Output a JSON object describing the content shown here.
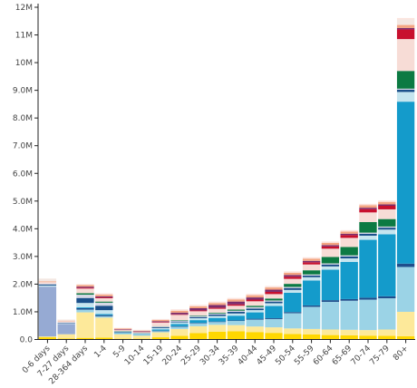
{
  "chart_data": {
    "type": "bar",
    "stacked": true,
    "ylim": [
      0,
      12000000
    ],
    "yticks": [
      {
        "value": 0,
        "label": "0.0"
      },
      {
        "value": 1000000,
        "label": "1.0M"
      },
      {
        "value": 2000000,
        "label": "2.0M"
      },
      {
        "value": 3000000,
        "label": "3.0M"
      },
      {
        "value": 4000000,
        "label": "4.0M"
      },
      {
        "value": 5000000,
        "label": "5.0M"
      },
      {
        "value": 6000000,
        "label": "6.0M"
      },
      {
        "value": 7000000,
        "label": "7.0M"
      },
      {
        "value": 8000000,
        "label": "8.0M"
      },
      {
        "value": 9000000,
        "label": "9.0M"
      },
      {
        "value": 10000000,
        "label": "10M"
      },
      {
        "value": 11000000,
        "label": "11M"
      },
      {
        "value": 12000000,
        "label": "12M"
      }
    ],
    "categories": [
      "0-6 days",
      "7-27 days",
      "28-364 days",
      "1-4",
      "5-9",
      "10-14",
      "15-19",
      "20-24",
      "25-29",
      "30-34",
      "35-39",
      "40-44",
      "45-49",
      "50-54",
      "55-59",
      "60-64",
      "65-69",
      "70-74",
      "75-79",
      "80+"
    ],
    "grid": false,
    "series": [
      {
        "color": "#ffd700",
        "values": [
          80000,
          40000,
          60000,
          70000,
          30000,
          30000,
          80000,
          130000,
          230000,
          280000,
          300000,
          270000,
          240000,
          200000,
          180000,
          160000,
          150000,
          140000,
          130000,
          120000
        ]
      },
      {
        "color": "#fde99a",
        "values": [
          30000,
          150000,
          920000,
          720000,
          160000,
          110000,
          180000,
          250000,
          250000,
          250000,
          220000,
          200000,
          200000,
          200000,
          200000,
          200000,
          200000,
          200000,
          230000,
          880000
        ]
      },
      {
        "color": "#9bd3e6",
        "values": [
          0,
          0,
          100000,
          50000,
          20000,
          30000,
          40000,
          80000,
          100000,
          100000,
          150000,
          250000,
          300000,
          550000,
          800000,
          1000000,
          1050000,
          1100000,
          1130000,
          1620000
        ]
      },
      {
        "color": "#1f4e8c",
        "values": [
          0,
          0,
          50000,
          40000,
          0,
          0,
          20000,
          20000,
          20000,
          20000,
          20000,
          30000,
          30000,
          40000,
          50000,
          60000,
          60000,
          70000,
          70000,
          120000
        ]
      },
      {
        "color": "#149bcb",
        "values": [
          0,
          0,
          30000,
          40000,
          20000,
          20000,
          40000,
          80000,
          100000,
          130000,
          170000,
          230000,
          440000,
          700000,
          900000,
          1100000,
          1340000,
          2090000,
          2240000,
          5850000
        ]
      },
      {
        "color": "#96aad3",
        "values": [
          1800000,
          370000,
          0,
          0,
          0,
          0,
          0,
          0,
          0,
          0,
          0,
          0,
          0,
          0,
          0,
          0,
          0,
          0,
          0,
          0
        ]
      },
      {
        "color": "#c5e5ef",
        "values": [
          40000,
          20000,
          160000,
          140000,
          30000,
          20000,
          50000,
          60000,
          70000,
          70000,
          80000,
          80000,
          100000,
          100000,
          120000,
          120000,
          130000,
          150000,
          170000,
          350000
        ]
      },
      {
        "color": "#1a4f8a",
        "values": [
          40000,
          20000,
          180000,
          160000,
          20000,
          10000,
          30000,
          30000,
          40000,
          50000,
          60000,
          60000,
          60000,
          70000,
          60000,
          70000,
          70000,
          70000,
          70000,
          80000
        ]
      },
      {
        "color": "#d6d8e6",
        "values": [
          30000,
          20000,
          120000,
          110000,
          20000,
          20000,
          30000,
          30000,
          40000,
          40000,
          40000,
          50000,
          40000,
          40000,
          40000,
          40000,
          40000,
          40000,
          40000,
          40000
        ]
      },
      {
        "color": "#0c7a43",
        "values": [
          0,
          0,
          50000,
          40000,
          10000,
          10000,
          10000,
          20000,
          20000,
          30000,
          40000,
          50000,
          70000,
          110000,
          150000,
          230000,
          300000,
          380000,
          270000,
          640000
        ]
      },
      {
        "color": "#f7dcd6",
        "values": [
          50000,
          40000,
          170000,
          120000,
          30000,
          20000,
          130000,
          190000,
          150000,
          140000,
          140000,
          160000,
          160000,
          180000,
          210000,
          300000,
          330000,
          350000,
          350000,
          1150000
        ]
      },
      {
        "color": "#c8102e",
        "values": [
          0,
          0,
          30000,
          30000,
          10000,
          10000,
          20000,
          20000,
          30000,
          40000,
          50000,
          60000,
          80000,
          80000,
          80000,
          80000,
          100000,
          120000,
          130000,
          350000
        ]
      },
      {
        "color": "#7b2c6b",
        "values": [
          0,
          0,
          40000,
          40000,
          20000,
          20000,
          30000,
          60000,
          80000,
          100000,
          100000,
          80000,
          80000,
          60000,
          50000,
          50000,
          50000,
          50000,
          50000,
          50000
        ]
      },
      {
        "color": "#f4a582",
        "values": [
          30000,
          20000,
          60000,
          60000,
          30000,
          20000,
          50000,
          70000,
          70000,
          70000,
          80000,
          80000,
          80000,
          80000,
          80000,
          80000,
          80000,
          90000,
          90000,
          110000
        ]
      },
      {
        "color": "#f3e7e2",
        "values": [
          100000,
          40000,
          0,
          0,
          0,
          0,
          0,
          0,
          0,
          0,
          0,
          0,
          0,
          0,
          0,
          0,
          0,
          0,
          0,
          200000
        ]
      },
      {
        "color": "#fbe3dc",
        "values": [
          0,
          0,
          30000,
          50000,
          20000,
          30000,
          30000,
          50000,
          50000,
          50000,
          50000,
          50000,
          50000,
          50000,
          50000,
          50000,
          50000,
          50000,
          50000,
          50000
        ]
      }
    ]
  }
}
